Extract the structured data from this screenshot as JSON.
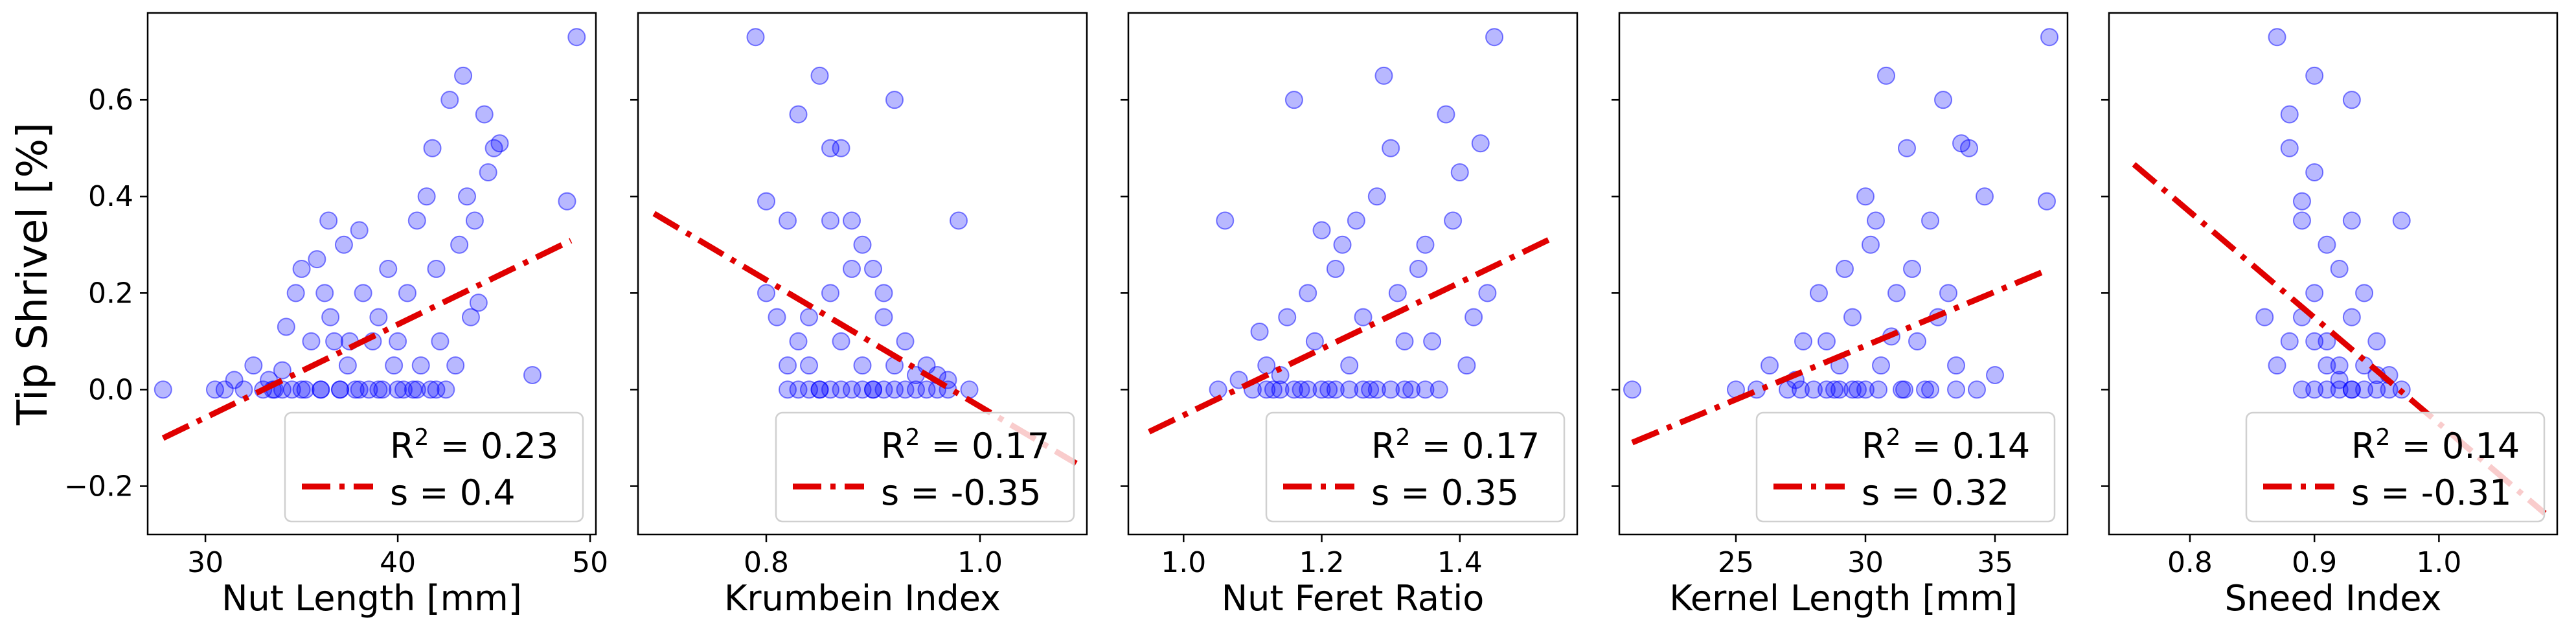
{
  "chart_data": [
    {
      "type": "scatter",
      "xlabel": "Nut Length [mm]",
      "ylabel": "Tip Shrivel [%]",
      "xlim": [
        27,
        50.3
      ],
      "ylim": [
        -0.3,
        0.78
      ],
      "xticks": [
        30,
        40,
        50
      ],
      "yticks": [
        -0.2,
        0.0,
        0.2,
        0.4,
        0.6
      ],
      "legend_location": "lower right",
      "fit": {
        "slope": 0.0193,
        "intercept": -0.637,
        "x_range": [
          27.8,
          49.0
        ]
      },
      "r2_label": "0.23",
      "s_label": "0.4",
      "points": [
        [
          27.8,
          0.0
        ],
        [
          30.5,
          0.0
        ],
        [
          31.0,
          0.0
        ],
        [
          31.5,
          0.02
        ],
        [
          32.0,
          0.0
        ],
        [
          32.5,
          0.05
        ],
        [
          33.0,
          0.0
        ],
        [
          33.3,
          0.02
        ],
        [
          33.6,
          0.0
        ],
        [
          34.0,
          0.04
        ],
        [
          34.2,
          0.13
        ],
        [
          34.5,
          0.0
        ],
        [
          34.7,
          0.2
        ],
        [
          35.0,
          0.25
        ],
        [
          35.2,
          0.0
        ],
        [
          35.5,
          0.1
        ],
        [
          35.8,
          0.27
        ],
        [
          36.0,
          0.0
        ],
        [
          36.2,
          0.2
        ],
        [
          36.4,
          0.35
        ],
        [
          36.5,
          0.15
        ],
        [
          36.7,
          0.1
        ],
        [
          37.0,
          0.0
        ],
        [
          37.2,
          0.3
        ],
        [
          37.4,
          0.05
        ],
        [
          37.5,
          0.1
        ],
        [
          37.8,
          0.0
        ],
        [
          38.0,
          0.33
        ],
        [
          38.2,
          0.2
        ],
        [
          38.5,
          0.0
        ],
        [
          38.7,
          0.1
        ],
        [
          39.0,
          0.15
        ],
        [
          39.2,
          0.0
        ],
        [
          39.5,
          0.25
        ],
        [
          39.8,
          0.05
        ],
        [
          40.0,
          0.1
        ],
        [
          40.3,
          0.0
        ],
        [
          40.5,
          0.2
        ],
        [
          40.8,
          0.0
        ],
        [
          41.0,
          0.35
        ],
        [
          41.2,
          0.05
        ],
        [
          41.5,
          0.4
        ],
        [
          41.7,
          0.0
        ],
        [
          41.8,
          0.5
        ],
        [
          42.0,
          0.25
        ],
        [
          42.2,
          0.1
        ],
        [
          42.5,
          0.0
        ],
        [
          42.7,
          0.6
        ],
        [
          43.0,
          0.05
        ],
        [
          43.2,
          0.3
        ],
        [
          43.4,
          0.65
        ],
        [
          43.6,
          0.4
        ],
        [
          43.8,
          0.15
        ],
        [
          44.0,
          0.35
        ],
        [
          44.2,
          0.18
        ],
        [
          44.5,
          0.57
        ],
        [
          44.7,
          0.45
        ],
        [
          45.0,
          0.5
        ],
        [
          45.3,
          0.51
        ],
        [
          47.0,
          0.03
        ],
        [
          48.8,
          0.39
        ],
        [
          49.3,
          0.73
        ],
        [
          36.0,
          0.0
        ],
        [
          37.0,
          0.0
        ],
        [
          38.0,
          0.0
        ],
        [
          39.0,
          0.0
        ],
        [
          40.0,
          0.0
        ],
        [
          41.0,
          0.0
        ],
        [
          42.0,
          0.0
        ],
        [
          34.0,
          0.0
        ],
        [
          35.0,
          0.0
        ],
        [
          33.5,
          0.0
        ]
      ]
    },
    {
      "type": "scatter",
      "xlabel": "Krumbein Index",
      "ylabel": "",
      "xlim": [
        0.68,
        1.1
      ],
      "ylim": [
        -0.3,
        0.78
      ],
      "xticks": [
        0.8,
        1.0
      ],
      "yticks": [],
      "legend_location": "lower right",
      "fit": {
        "slope": -1.31,
        "intercept": 1.275,
        "x_range": [
          0.695,
          1.09
        ]
      },
      "r2_label": "0.17",
      "s_label": "-0.35",
      "points": [
        [
          0.79,
          0.73
        ],
        [
          0.8,
          0.39
        ],
        [
          0.8,
          0.2
        ],
        [
          0.81,
          0.15
        ],
        [
          0.82,
          0.35
        ],
        [
          0.82,
          0.0
        ],
        [
          0.83,
          0.1
        ],
        [
          0.83,
          0.57
        ],
        [
          0.84,
          0.05
        ],
        [
          0.84,
          0.15
        ],
        [
          0.85,
          0.0
        ],
        [
          0.85,
          0.65
        ],
        [
          0.86,
          0.5
        ],
        [
          0.86,
          0.35
        ],
        [
          0.86,
          0.2
        ],
        [
          0.87,
          0.1
        ],
        [
          0.87,
          0.5
        ],
        [
          0.87,
          0.0
        ],
        [
          0.88,
          0.25
        ],
        [
          0.88,
          0.35
        ],
        [
          0.89,
          0.05
        ],
        [
          0.89,
          0.3
        ],
        [
          0.9,
          0.25
        ],
        [
          0.9,
          0.0
        ],
        [
          0.91,
          0.15
        ],
        [
          0.91,
          0.2
        ],
        [
          0.92,
          0.05
        ],
        [
          0.92,
          0.6
        ],
        [
          0.93,
          0.0
        ],
        [
          0.93,
          0.1
        ],
        [
          0.94,
          0.03
        ],
        [
          0.95,
          0.05
        ],
        [
          0.96,
          0.0
        ],
        [
          0.97,
          0.02
        ],
        [
          0.98,
          0.35
        ],
        [
          0.99,
          0.0
        ],
        [
          0.85,
          0.0
        ],
        [
          0.86,
          0.0
        ],
        [
          0.88,
          0.0
        ],
        [
          0.89,
          0.0
        ],
        [
          0.9,
          0.0
        ],
        [
          0.91,
          0.0
        ],
        [
          0.92,
          0.0
        ],
        [
          0.94,
          0.0
        ],
        [
          0.95,
          0.0
        ],
        [
          0.96,
          0.03
        ],
        [
          0.97,
          0.0
        ],
        [
          0.84,
          0.0
        ],
        [
          0.83,
          0.0
        ],
        [
          0.82,
          0.05
        ]
      ]
    },
    {
      "type": "scatter",
      "xlabel": "Nut Feret Ratio",
      "ylabel": "",
      "xlim": [
        0.92,
        1.57
      ],
      "ylim": [
        -0.3,
        0.78
      ],
      "xticks": [
        1.0,
        1.2,
        1.4
      ],
      "yticks": [],
      "legend_location": "lower right",
      "fit": {
        "slope": 0.687,
        "intercept": -0.74,
        "x_range": [
          0.95,
          1.54
        ]
      },
      "r2_label": "0.17",
      "s_label": "0.35",
      "points": [
        [
          1.05,
          0.0
        ],
        [
          1.06,
          0.35
        ],
        [
          1.08,
          0.02
        ],
        [
          1.1,
          0.0
        ],
        [
          1.11,
          0.12
        ],
        [
          1.12,
          0.05
        ],
        [
          1.13,
          0.0
        ],
        [
          1.14,
          0.03
        ],
        [
          1.15,
          0.15
        ],
        [
          1.16,
          0.6
        ],
        [
          1.17,
          0.0
        ],
        [
          1.18,
          0.2
        ],
        [
          1.19,
          0.1
        ],
        [
          1.2,
          0.33
        ],
        [
          1.21,
          0.0
        ],
        [
          1.22,
          0.25
        ],
        [
          1.23,
          0.3
        ],
        [
          1.24,
          0.05
        ],
        [
          1.25,
          0.35
        ],
        [
          1.26,
          0.15
        ],
        [
          1.27,
          0.0
        ],
        [
          1.28,
          0.4
        ],
        [
          1.29,
          0.65
        ],
        [
          1.3,
          0.5
        ],
        [
          1.31,
          0.2
        ],
        [
          1.32,
          0.1
        ],
        [
          1.33,
          0.0
        ],
        [
          1.34,
          0.25
        ],
        [
          1.35,
          0.3
        ],
        [
          1.36,
          0.1
        ],
        [
          1.37,
          0.0
        ],
        [
          1.38,
          0.57
        ],
        [
          1.39,
          0.35
        ],
        [
          1.4,
          0.45
        ],
        [
          1.41,
          0.05
        ],
        [
          1.42,
          0.15
        ],
        [
          1.43,
          0.51
        ],
        [
          1.44,
          0.2
        ],
        [
          1.45,
          0.73
        ],
        [
          1.12,
          0.0
        ],
        [
          1.14,
          0.0
        ],
        [
          1.16,
          0.0
        ],
        [
          1.18,
          0.0
        ],
        [
          1.2,
          0.0
        ],
        [
          1.22,
          0.0
        ],
        [
          1.24,
          0.0
        ],
        [
          1.26,
          0.0
        ],
        [
          1.28,
          0.0
        ],
        [
          1.3,
          0.0
        ],
        [
          1.32,
          0.0
        ],
        [
          1.35,
          0.0
        ]
      ]
    },
    {
      "type": "scatter",
      "xlabel": "Kernel Length [mm]",
      "ylabel": "",
      "xlim": [
        20.5,
        37.8
      ],
      "ylim": [
        -0.3,
        0.78
      ],
      "xticks": [
        25,
        30,
        35
      ],
      "yticks": [],
      "legend_location": "lower right",
      "fit": {
        "slope": 0.0223,
        "intercept": -0.578,
        "x_range": [
          21.0,
          37.1
        ]
      },
      "r2_label": "0.14",
      "s_label": "0.32",
      "points": [
        [
          21.0,
          0.0
        ],
        [
          25.0,
          0.0
        ],
        [
          25.8,
          0.0
        ],
        [
          26.3,
          0.05
        ],
        [
          27.0,
          0.0
        ],
        [
          27.3,
          0.02
        ],
        [
          27.6,
          0.1
        ],
        [
          28.0,
          0.0
        ],
        [
          28.2,
          0.2
        ],
        [
          28.5,
          0.1
        ],
        [
          28.8,
          0.0
        ],
        [
          29.0,
          0.05
        ],
        [
          29.2,
          0.25
        ],
        [
          29.5,
          0.15
        ],
        [
          29.7,
          0.0
        ],
        [
          30.0,
          0.4
        ],
        [
          30.2,
          0.3
        ],
        [
          30.4,
          0.35
        ],
        [
          30.6,
          0.05
        ],
        [
          30.8,
          0.65
        ],
        [
          31.0,
          0.11
        ],
        [
          31.2,
          0.2
        ],
        [
          31.4,
          0.0
        ],
        [
          31.6,
          0.5
        ],
        [
          31.8,
          0.25
        ],
        [
          32.0,
          0.1
        ],
        [
          32.3,
          0.0
        ],
        [
          32.5,
          0.35
        ],
        [
          32.8,
          0.15
        ],
        [
          33.0,
          0.6
        ],
        [
          33.2,
          0.2
        ],
        [
          33.5,
          0.05
        ],
        [
          33.7,
          0.51
        ],
        [
          34.0,
          0.5
        ],
        [
          34.3,
          0.0
        ],
        [
          34.6,
          0.4
        ],
        [
          35.0,
          0.03
        ],
        [
          37.0,
          0.39
        ],
        [
          37.1,
          0.73
        ],
        [
          27.5,
          0.0
        ],
        [
          28.5,
          0.0
        ],
        [
          29.5,
          0.0
        ],
        [
          30.5,
          0.0
        ],
        [
          31.5,
          0.0
        ],
        [
          32.5,
          0.0
        ],
        [
          33.5,
          0.0
        ],
        [
          29.0,
          0.0
        ],
        [
          30.0,
          0.0
        ]
      ]
    },
    {
      "type": "scatter",
      "xlabel": "Sneed Index",
      "ylabel": "",
      "xlim": [
        0.735,
        1.095
      ],
      "ylim": [
        -0.3,
        0.78
      ],
      "xticks": [
        0.8,
        0.9,
        1.0
      ],
      "yticks": [],
      "legend_location": "lower right",
      "fit": {
        "slope": -2.19,
        "intercept": 2.12,
        "x_range": [
          0.755,
          1.085
        ]
      },
      "r2_label": "0.14",
      "s_label": "-0.31",
      "points": [
        [
          0.87,
          0.73
        ],
        [
          0.88,
          0.57
        ],
        [
          0.88,
          0.5
        ],
        [
          0.89,
          0.39
        ],
        [
          0.89,
          0.35
        ],
        [
          0.9,
          0.65
        ],
        [
          0.9,
          0.45
        ],
        [
          0.9,
          0.2
        ],
        [
          0.91,
          0.3
        ],
        [
          0.91,
          0.1
        ],
        [
          0.92,
          0.25
        ],
        [
          0.92,
          0.0
        ],
        [
          0.93,
          0.6
        ],
        [
          0.93,
          0.15
        ],
        [
          0.93,
          0.35
        ],
        [
          0.94,
          0.05
        ],
        [
          0.94,
          0.2
        ],
        [
          0.95,
          0.1
        ],
        [
          0.95,
          0.0
        ],
        [
          0.96,
          0.03
        ],
        [
          0.97,
          0.35
        ],
        [
          0.97,
          0.0
        ],
        [
          0.86,
          0.15
        ],
        [
          0.87,
          0.05
        ],
        [
          0.88,
          0.1
        ],
        [
          0.89,
          0.0
        ],
        [
          0.9,
          0.0
        ],
        [
          0.91,
          0.0
        ],
        [
          0.92,
          0.02
        ],
        [
          0.93,
          0.0
        ],
        [
          0.94,
          0.0
        ],
        [
          0.95,
          0.03
        ],
        [
          0.96,
          0.0
        ],
        [
          0.91,
          0.05
        ],
        [
          0.9,
          0.1
        ],
        [
          0.89,
          0.15
        ],
        [
          0.92,
          0.05
        ],
        [
          0.93,
          0.0
        ]
      ]
    }
  ]
}
